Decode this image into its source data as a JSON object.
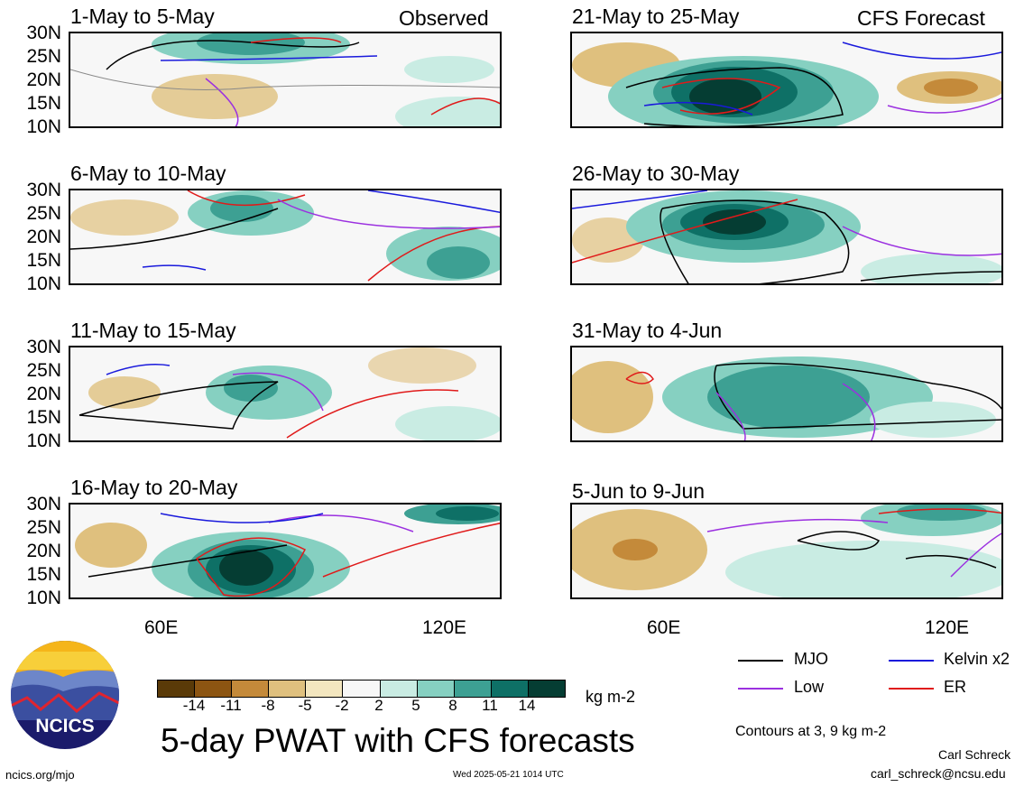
{
  "panels": [
    {
      "title": "1-May to 5-May",
      "tag": "Observed"
    },
    {
      "title": "6-May to 10-May",
      "tag": ""
    },
    {
      "title": "11-May to 15-May",
      "tag": ""
    },
    {
      "title": "16-May to 20-May",
      "tag": ""
    },
    {
      "title": "21-May to 25-May",
      "tag": "CFS Forecast"
    },
    {
      "title": "26-May to 30-May",
      "tag": ""
    },
    {
      "title": "31-May to 4-Jun",
      "tag": ""
    },
    {
      "title": "5-Jun to 9-Jun",
      "tag": ""
    }
  ],
  "lat_labels": [
    "30N",
    "25N",
    "20N",
    "15N",
    "10N"
  ],
  "lon_labels": [
    "60E",
    "120E"
  ],
  "legend": {
    "mjo": "MJO",
    "kelvin": "Kelvin x2",
    "low": "Low",
    "er": "ER",
    "colors": {
      "mjo": "#000000",
      "kelvin": "#1a1adc",
      "low": "#9b30e0",
      "er": "#e01a1a"
    }
  },
  "colorbar": {
    "ticks": [
      "-14",
      "-11",
      "-8",
      "-5",
      "-2",
      "2",
      "5",
      "8",
      "11",
      "14"
    ],
    "units": "kg m-2",
    "colors": [
      "#5a3a08",
      "#8c5512",
      "#c48a3a",
      "#dfc07e",
      "#f3e6bf",
      "#f7f7f7",
      "#c9ece3",
      "#86d0c1",
      "#3da093",
      "#0e7066",
      "#053d33"
    ]
  },
  "main_title": "5-day PWAT with CFS forecasts",
  "contours_note": "Contours at 3, 9 kg m-2",
  "logo_text": "NCICS",
  "footer": {
    "url": "ncics.org/mjo",
    "timestamp": "Wed 2025-05-21 1014 UTC",
    "author": "Carl Schreck",
    "email": "carl_schreck@ncsu.edu"
  }
}
